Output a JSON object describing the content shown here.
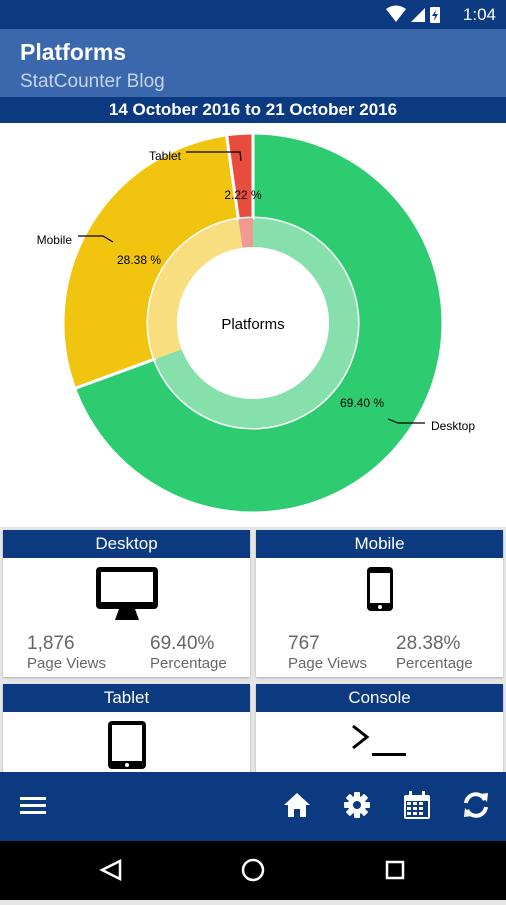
{
  "status": {
    "time": "1:04"
  },
  "header": {
    "title": "Platforms",
    "subtitle": "StatCounter Blog"
  },
  "date_range": "14 October 2016 to 21 October 2016",
  "chart_data": {
    "type": "pie",
    "center_label": "Platforms",
    "slices": [
      {
        "label": "Desktop",
        "value": 69.4,
        "display": "69.40 %",
        "color": "#2ecc71",
        "inner_color": "#86e0ab"
      },
      {
        "label": "Mobile",
        "value": 28.38,
        "display": "28.38 %",
        "color": "#f1c40f",
        "inner_color": "#f8de7e"
      },
      {
        "label": "Tablet",
        "value": 2.22,
        "display": "2.22 %",
        "color": "#e74c3c",
        "inner_color": "#f09a91"
      }
    ]
  },
  "cards": [
    {
      "title": "Desktop",
      "icon": "monitor-icon",
      "page_views": "1,876",
      "page_views_label": "Page Views",
      "percentage": "69.40%",
      "percentage_label": "Percentage"
    },
    {
      "title": "Mobile",
      "icon": "phone-icon",
      "page_views": "767",
      "page_views_label": "Page Views",
      "percentage": "28.38%",
      "percentage_label": "Percentage"
    },
    {
      "title": "Tablet",
      "icon": "tablet-icon"
    },
    {
      "title": "Console",
      "icon": "console-icon"
    }
  ],
  "nav": [
    "menu-icon",
    "home-icon",
    "settings-icon",
    "calendar-icon",
    "refresh-icon"
  ],
  "colors": {
    "primary": "#0b3a80",
    "appbar": "#3b67ac"
  }
}
